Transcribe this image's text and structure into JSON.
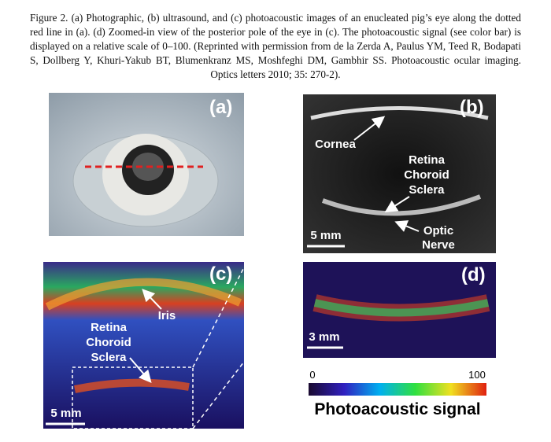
{
  "caption": "Figure 2. (a) Photographic, (b) ultrasound, and (c) photoacoustic images of an enucleated pig’s eye along the dotted red line in (a). (d) Zoomed-in view of the posterior pole of the eye in (c). The photoacoustic signal (see color bar) is displayed on a relative scale of 0–100. (Reprinted with permission from de la Zerda A, Paulus YM, Teed R, Bodapati S, Dollberg Y, Khuri-Yakub BT, Blumenkranz MS, Moshfeghi DM, Gambhir SS. Photoacoustic ocular imaging. Optics letters 2010; 35: 270-2).",
  "panels": [
    {
      "label": "(a)"
    },
    {
      "label": "(b)",
      "annotations": [
        "Cornea",
        "Retina",
        "Choroid",
        "Sclera",
        "Optic",
        "Nerve"
      ],
      "scale_bar": "5 mm"
    },
    {
      "label": "(c)",
      "annotations": [
        "Iris",
        "Retina",
        "Choroid",
        "Sclera"
      ],
      "scale_bar": "5 mm"
    },
    {
      "label": "(d)",
      "scale_bar": "3 mm"
    }
  ],
  "colorbar": {
    "min": 0,
    "max": 100,
    "title": "Photoacoustic signal"
  }
}
